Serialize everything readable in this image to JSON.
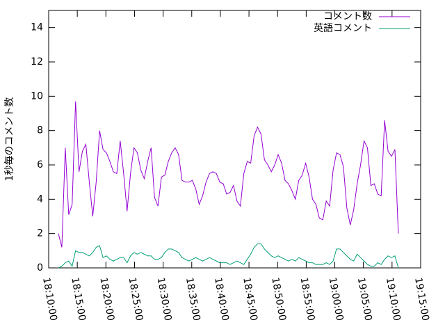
{
  "chart_data": {
    "type": "line",
    "y_label": "1秒毎のコメント数",
    "x": [
      "18:11:42",
      "18:12:18",
      "18:12:54",
      "18:13:30",
      "18:14:06",
      "18:14:42",
      "18:15:18",
      "18:15:54",
      "18:16:30",
      "18:17:06",
      "18:17:42",
      "18:18:18",
      "18:18:54",
      "18:19:30",
      "18:20:06",
      "18:20:42",
      "18:21:18",
      "18:21:54",
      "18:22:30",
      "18:23:06",
      "18:23:42",
      "18:24:18",
      "18:24:54",
      "18:25:30",
      "18:26:06",
      "18:26:42",
      "18:27:18",
      "18:27:54",
      "18:28:30",
      "18:29:06",
      "18:29:42",
      "18:30:18",
      "18:30:54",
      "18:31:30",
      "18:32:06",
      "18:32:42",
      "18:33:18",
      "18:33:54",
      "18:34:30",
      "18:35:06",
      "18:35:42",
      "18:36:18",
      "18:36:54",
      "18:37:30",
      "18:38:06",
      "18:38:42",
      "18:39:18",
      "18:39:54",
      "18:40:30",
      "18:41:06",
      "18:41:42",
      "18:42:18",
      "18:42:54",
      "18:43:30",
      "18:44:06",
      "18:44:42",
      "18:45:18",
      "18:45:54",
      "18:46:30",
      "18:47:06",
      "18:47:42",
      "18:48:18",
      "18:48:54",
      "18:49:30",
      "18:50:06",
      "18:50:42",
      "18:51:18",
      "18:51:54",
      "18:52:30",
      "18:53:06",
      "18:53:42",
      "18:54:18",
      "18:54:54",
      "18:55:30",
      "18:56:06",
      "18:56:42",
      "18:57:18",
      "18:57:54",
      "18:58:30",
      "18:59:06",
      "18:59:42",
      "19:00:18",
      "19:00:54",
      "19:01:30",
      "19:02:06",
      "19:02:42",
      "19:03:18",
      "19:03:54",
      "19:04:30",
      "19:05:06",
      "19:05:42",
      "19:06:18",
      "19:06:54",
      "19:07:30",
      "19:08:06",
      "19:08:42",
      "19:09:18",
      "19:09:54",
      "19:10:30",
      "19:11:06"
    ],
    "series": [
      {
        "name": "コメント数",
        "color": "#9400d3",
        "values": [
          2.0,
          1.2,
          7.0,
          3.1,
          3.7,
          9.7,
          5.6,
          6.8,
          7.2,
          5.0,
          3.0,
          5.0,
          8.0,
          6.9,
          6.7,
          6.2,
          5.6,
          5.5,
          7.4,
          5.5,
          3.3,
          5.5,
          7.0,
          6.7,
          5.7,
          5.2,
          6.2,
          7.0,
          4.1,
          3.6,
          5.3,
          5.4,
          6.2,
          6.7,
          7.0,
          6.6,
          5.1,
          5.0,
          5.0,
          5.1,
          4.6,
          3.7,
          4.2,
          5.0,
          5.5,
          5.6,
          5.5,
          5.0,
          4.9,
          4.3,
          4.4,
          4.8,
          3.9,
          3.6,
          5.5,
          6.2,
          6.1,
          7.7,
          8.2,
          7.8,
          6.3,
          6.0,
          5.6,
          6.0,
          6.6,
          6.1,
          5.1,
          4.9,
          4.5,
          4.0,
          5.1,
          5.4,
          6.1,
          5.3,
          4.0,
          3.7,
          2.9,
          2.8,
          3.9,
          3.6,
          5.7,
          6.7,
          6.6,
          5.9,
          3.5,
          2.5,
          3.4,
          4.9,
          6.0,
          7.4,
          7.0,
          4.8,
          4.9,
          4.3,
          4.2,
          8.6,
          6.8,
          6.5,
          6.9,
          2.0
        ]
      },
      {
        "name": "英語コメント",
        "color": "#009e73",
        "values": [
          0.0,
          0.1,
          0.3,
          0.4,
          0.1,
          1.0,
          0.9,
          0.9,
          0.8,
          0.7,
          0.9,
          1.2,
          1.3,
          0.6,
          0.7,
          0.5,
          0.4,
          0.5,
          0.6,
          0.6,
          0.3,
          0.7,
          0.9,
          0.8,
          0.9,
          0.8,
          0.7,
          0.7,
          0.5,
          0.5,
          0.6,
          0.9,
          1.1,
          1.1,
          1.0,
          0.9,
          0.6,
          0.5,
          0.4,
          0.5,
          0.6,
          0.5,
          0.4,
          0.5,
          0.6,
          0.5,
          0.4,
          0.3,
          0.3,
          0.3,
          0.2,
          0.3,
          0.4,
          0.3,
          0.2,
          0.5,
          0.8,
          1.2,
          1.4,
          1.4,
          1.1,
          0.9,
          0.7,
          0.6,
          0.7,
          0.6,
          0.5,
          0.4,
          0.5,
          0.4,
          0.6,
          0.5,
          0.4,
          0.3,
          0.3,
          0.2,
          0.2,
          0.2,
          0.3,
          0.2,
          0.4,
          1.1,
          1.1,
          0.9,
          0.7,
          0.5,
          0.4,
          0.8,
          0.6,
          0.4,
          0.2,
          0.1,
          0.1,
          0.3,
          0.2,
          0.5,
          0.7,
          0.6,
          0.7,
          0.0
        ]
      }
    ],
    "xlim": [
      "18:10:00",
      "19:15:00"
    ],
    "xticks": [
      "18:10:00",
      "18:15:00",
      "18:20:00",
      "18:25:00",
      "18:30:00",
      "18:35:00",
      "18:40:00",
      "18:45:00",
      "18:50:00",
      "18:55:00",
      "19:00:00",
      "19:05:00",
      "19:10:00",
      "19:15:00"
    ],
    "ylim": [
      0,
      15
    ],
    "yticks": [
      0,
      2,
      4,
      6,
      8,
      10,
      12,
      14
    ],
    "legend": "top-right",
    "grid": false
  }
}
